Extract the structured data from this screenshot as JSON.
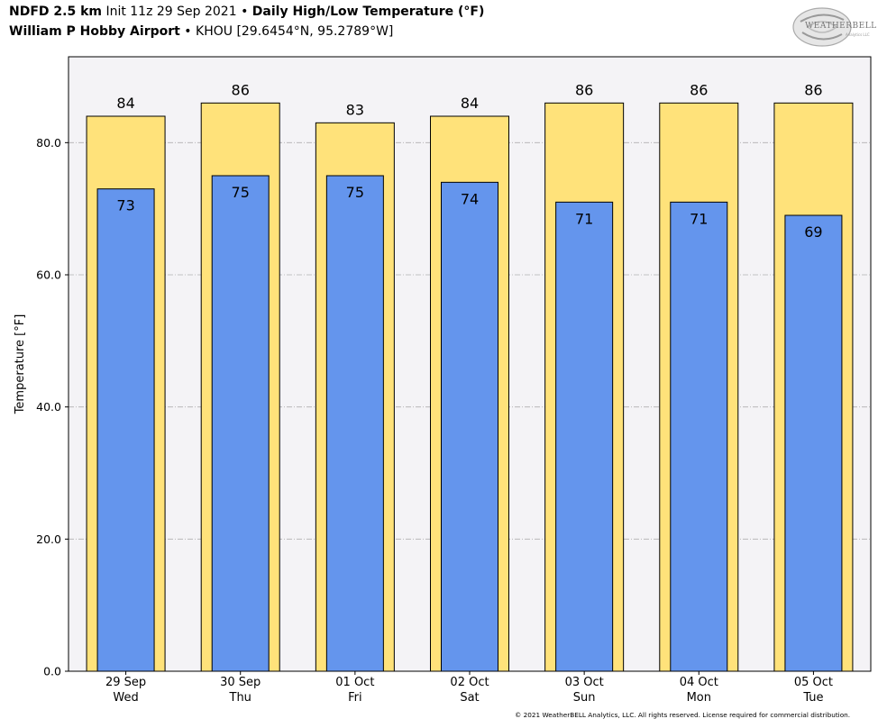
{
  "header": {
    "line1_product": "NDFD 2.5 km",
    "line1_init": "Init 11z 29 Sep 2021",
    "line1_sep": "•",
    "line1_title": "Daily High/Low Temperature (°F)",
    "line2_station": "William P Hobby Airport",
    "line2_sep": "•",
    "line2_location": "KHOU [29.6454°N, 95.2789°W]"
  },
  "logo": {
    "text": "WEATHERBELL",
    "subtext": "Analytics LLC"
  },
  "footer": "© 2021 WeatherBELL Analytics, LLC. All rights reserved. License required for commercial distribution.",
  "chart_data": {
    "type": "bar",
    "categories": [
      "29 Sep",
      "30 Sep",
      "01 Oct",
      "02 Oct",
      "03 Oct",
      "04 Oct",
      "05 Oct"
    ],
    "category_days": [
      "Wed",
      "Thu",
      "Fri",
      "Sat",
      "Sun",
      "Mon",
      "Tue"
    ],
    "series": [
      {
        "values": [
          84,
          86,
          83,
          84,
          86,
          86,
          86
        ],
        "color": "#ffe27a"
      },
      {
        "values": [
          73,
          75,
          75,
          74,
          71,
          71,
          69
        ],
        "color": "#6495ed"
      }
    ],
    "ylabel": "Temperature [°F]",
    "ylim": [
      0,
      93
    ],
    "yticks": [
      0,
      20,
      40,
      60,
      80
    ],
    "ytick_labels": [
      "0.0",
      "20.0",
      "40.0",
      "60.0",
      "80.0"
    ],
    "grid": true,
    "plot_background": "#f4f3f6"
  }
}
